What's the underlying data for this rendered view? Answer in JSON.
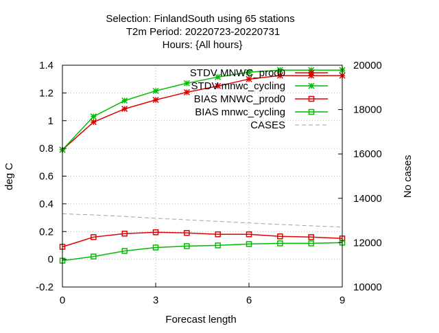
{
  "chart_data": {
    "type": "line",
    "title_lines": [
      "Selection: FinlandSouth using    65 stations",
      "T2m   Period: 20220723-20220731",
      "Hours: {All hours}"
    ],
    "xlabel": "Forecast length",
    "ylabel": "deg C",
    "y2label": "No cases",
    "xlim": [
      0,
      9
    ],
    "ylim": [
      -0.2,
      1.4
    ],
    "y2lim": [
      10000,
      20000
    ],
    "x_ticks": [
      0,
      3,
      6,
      9
    ],
    "y_ticks": [
      -0.2,
      0,
      0.2,
      0.4,
      0.6,
      0.8,
      1,
      1.2,
      1.4
    ],
    "y2_ticks": [
      10000,
      12000,
      14000,
      16000,
      18000,
      20000
    ],
    "grid": true,
    "legend_position": "top-right",
    "x": [
      0,
      1,
      2,
      3,
      4,
      5,
      6,
      7,
      8,
      9
    ],
    "series": [
      {
        "name": "STDV MNWC_prod0",
        "axis": "y",
        "marker": "star",
        "dash": "solid",
        "color": "#e00000",
        "values": [
          0.79,
          0.99,
          1.085,
          1.15,
          1.205,
          1.25,
          1.3,
          1.325,
          1.325,
          1.325
        ]
      },
      {
        "name": "STDV mnwc_cycling",
        "axis": "y",
        "marker": "star",
        "dash": "solid",
        "color": "#00bb00",
        "values": [
          0.79,
          1.03,
          1.145,
          1.215,
          1.27,
          1.315,
          1.35,
          1.365,
          1.365,
          1.365
        ]
      },
      {
        "name": "BIAS MNWC_prod0",
        "axis": "y",
        "marker": "square",
        "dash": "solid",
        "color": "#e00000",
        "values": [
          0.09,
          0.16,
          0.185,
          0.195,
          0.19,
          0.18,
          0.18,
          0.165,
          0.16,
          0.15
        ]
      },
      {
        "name": "BIAS mnwc_cycling",
        "axis": "y",
        "marker": "square",
        "dash": "solid",
        "color": "#00bb00",
        "values": [
          -0.01,
          0.02,
          0.06,
          0.085,
          0.095,
          0.1,
          0.11,
          0.115,
          0.115,
          0.12
        ]
      },
      {
        "name": "CASES",
        "axis": "y2",
        "marker": "none",
        "dash": "dashed",
        "color": "#a0a0a0",
        "values": [
          13300,
          13250,
          13180,
          13100,
          13030,
          12960,
          12890,
          12820,
          12760,
          12700
        ]
      }
    ]
  }
}
